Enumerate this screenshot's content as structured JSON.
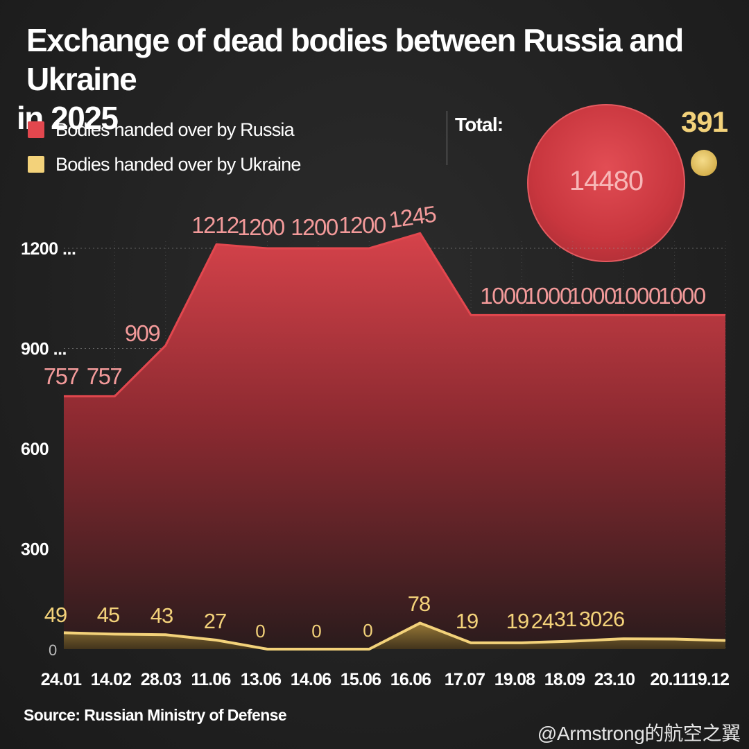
{
  "title_line1": "Exchange of dead bodies between Russia and Ukraine",
  "title_line2": "in 2025",
  "legend": [
    {
      "label": "Bodies handed over by Russia",
      "color": "#e2474e"
    },
    {
      "label": "Bodies handed over by Ukraine",
      "color": "#f3d27a"
    }
  ],
  "total": {
    "label": "Total:",
    "russia": "14480",
    "ukraine": "391"
  },
  "source": "Source: Russian Ministry of Defense",
  "watermark": "@Armstrong的航空之翼",
  "chart_data": {
    "type": "area",
    "categories": [
      "24.01",
      "14.02",
      "28.03",
      "11.06",
      "13.06",
      "14.06",
      "15.06",
      "16.06",
      "17.07",
      "19.08",
      "18.09",
      "23.10",
      "20.11",
      "19.12"
    ],
    "y_tick_labels": [
      "1200 ...",
      "900 ...",
      "600",
      "300",
      "0"
    ],
    "y_tick_values": [
      1200,
      900,
      600,
      300,
      0
    ],
    "ylim": [
      0,
      1300
    ],
    "grid": true,
    "series": [
      {
        "name": "Bodies handed over by Russia",
        "color": "#e2474e",
        "x": [
          0,
          1,
          2,
          3,
          4,
          5,
          6,
          7,
          8,
          9,
          10,
          11,
          12,
          13
        ],
        "values": [
          757,
          757,
          909,
          1212,
          1200,
          1200,
          1200,
          1245,
          1000,
          1000,
          1000,
          1000,
          1000,
          1000
        ],
        "labels": [
          "757",
          "757",
          "909",
          "1212",
          "1200",
          "",
          "1200",
          "1245",
          "",
          "1000",
          "1000",
          "1000",
          "1000",
          "1000"
        ]
      },
      {
        "name": "Bodies handed over by Ukraine",
        "color": "#f3d27a",
        "x": [
          0,
          1,
          2,
          3,
          4,
          5,
          6,
          7,
          8,
          9,
          10,
          11,
          12,
          13
        ],
        "values": [
          49,
          45,
          43,
          27,
          0,
          0,
          0,
          78,
          19,
          19,
          24,
          31,
          30,
          26
        ],
        "labels": [
          "49",
          "45",
          "43",
          "27",
          "0",
          "0",
          "0",
          "78",
          "19",
          "19",
          "24",
          "31",
          "30",
          "26"
        ]
      }
    ],
    "extra_labels": [
      {
        "text": "1200",
        "series": 0,
        "category": "14.06"
      }
    ]
  }
}
